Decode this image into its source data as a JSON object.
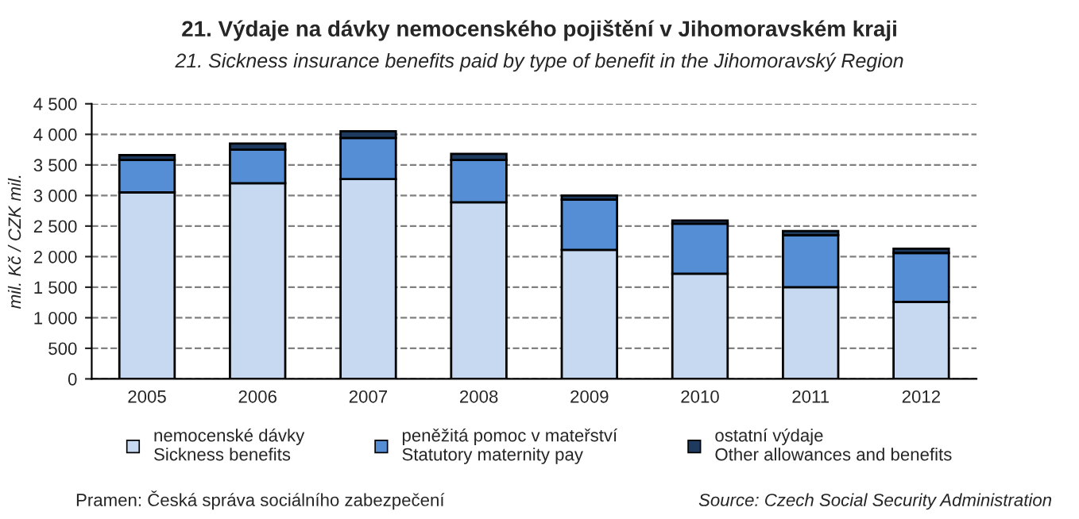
{
  "chart_data": {
    "type": "bar",
    "title": "21. Výdaje na dávky nemocenského pojištění v Jihomoravském kraji",
    "subtitle": "21. Sickness insurance benefits paid by type of benefit in the Jihomoravský Region",
    "ylabel": "mil. Kč / CZK mil.",
    "categories": [
      "2005",
      "2006",
      "2007",
      "2008",
      "2009",
      "2010",
      "2011",
      "2012"
    ],
    "stacked": true,
    "series": [
      {
        "name": "nemocenské dávky\nSickness benefits",
        "color": "#c6d9f1",
        "values": [
          3050,
          3200,
          3270,
          2890,
          2110,
          1720,
          1500,
          1260
        ]
      },
      {
        "name": "peněžitá pomoc v mateřství\nStatutory maternity pay",
        "color": "#558ed5",
        "values": [
          530,
          550,
          670,
          690,
          820,
          820,
          850,
          800
        ]
      },
      {
        "name": "ostatní výdaje\nOther allowances and benefits",
        "color": "#1f3a5f",
        "values": [
          80,
          100,
          110,
          100,
          70,
          50,
          70,
          70
        ]
      }
    ],
    "ylim": [
      0,
      4500
    ],
    "yticks": [
      0,
      500,
      {
        "value": 1000,
        "label": "1 000"
      },
      {
        "value": 1500,
        "label": "1 500"
      },
      {
        "value": 2000,
        "label": "2 000"
      },
      {
        "value": 2500,
        "label": "2 500"
      },
      {
        "value": 3000,
        "label": "3 000"
      },
      {
        "value": 3500,
        "label": "3 500"
      },
      {
        "value": 4000,
        "label": "4 000"
      },
      {
        "value": 4500,
        "label": "4 500"
      }
    ],
    "grid": "y",
    "legend": "bottom",
    "annotations": [
      "Pramen: Česká správa sociálního zabezpečení",
      "Source: Czech Social Security Administration"
    ]
  }
}
